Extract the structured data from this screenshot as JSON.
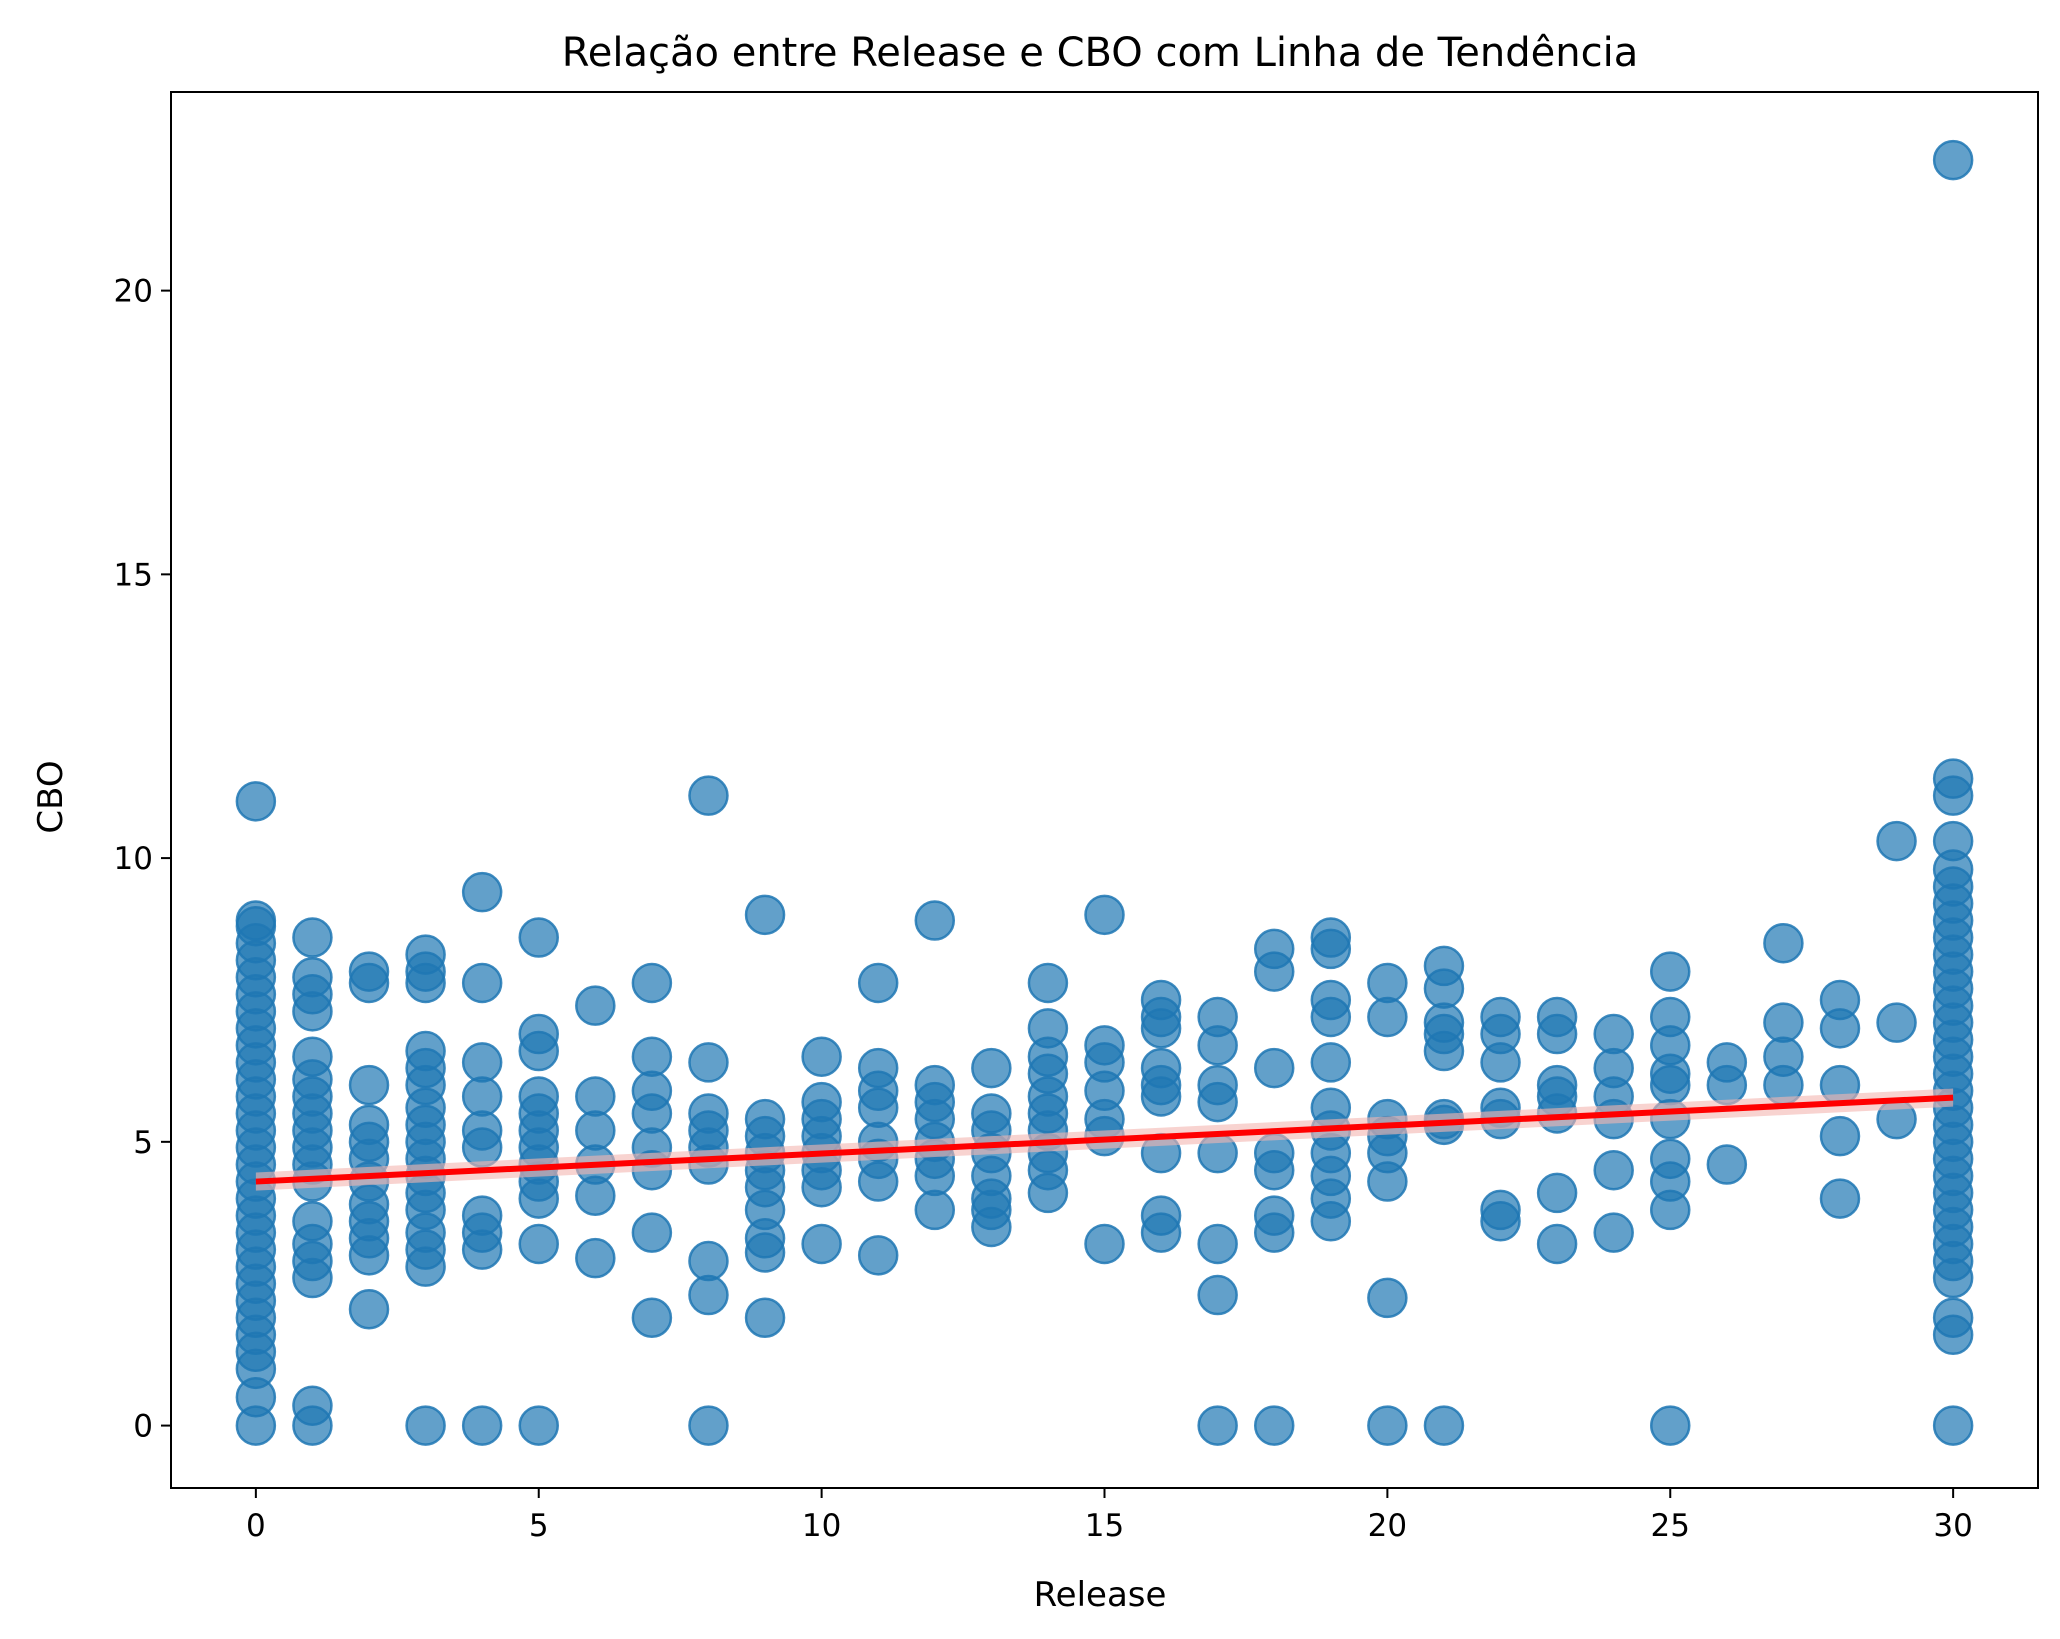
{
  "chart_data": {
    "type": "scatter",
    "title": "Relação entre Release e CBO com Linha de Tendência",
    "xlabel": "Release",
    "ylabel": "CBO",
    "xlim": [
      -1.5,
      31.5
    ],
    "ylim": [
      -1.1,
      23.5
    ],
    "xticks": [
      0,
      5,
      10,
      15,
      20,
      25,
      30
    ],
    "yticks": [
      0,
      5,
      10,
      15,
      20
    ],
    "grid": false,
    "legend": "none",
    "colors": {
      "points": "#1f77b4",
      "trend": "#ff0000",
      "band": "#f4b6b0"
    },
    "trend_line": {
      "x0": 0,
      "y0": 4.3,
      "x1": 30,
      "y1": 5.78,
      "ci_half_width": 0.16
    },
    "series": [
      {
        "values": [
          [
            0,
            0
          ],
          [
            0,
            0.5
          ],
          [
            0,
            1.0
          ],
          [
            0,
            1.3
          ],
          [
            0,
            1.6
          ],
          [
            0,
            1.9
          ],
          [
            0,
            2.2
          ],
          [
            0,
            2.5
          ],
          [
            0,
            2.8
          ],
          [
            0,
            3.1
          ],
          [
            0,
            3.4
          ],
          [
            0,
            3.7
          ],
          [
            0,
            4.0
          ],
          [
            0,
            4.3
          ],
          [
            0,
            4.6
          ],
          [
            0,
            4.9
          ],
          [
            0,
            5.2
          ],
          [
            0,
            5.5
          ],
          [
            0,
            5.8
          ],
          [
            0,
            6.1
          ],
          [
            0,
            6.4
          ],
          [
            0,
            6.7
          ],
          [
            0,
            7.0
          ],
          [
            0,
            7.3
          ],
          [
            0,
            7.6
          ],
          [
            0,
            7.9
          ],
          [
            0,
            8.2
          ],
          [
            0,
            8.5
          ],
          [
            0,
            8.8
          ],
          [
            0,
            8.9
          ],
          [
            0,
            11.0
          ],
          [
            1,
            0
          ],
          [
            1,
            0.35
          ],
          [
            1,
            2.6
          ],
          [
            1,
            2.9
          ],
          [
            1,
            3.2
          ],
          [
            1,
            3.6
          ],
          [
            1,
            4.3
          ],
          [
            1,
            4.6
          ],
          [
            1,
            4.9
          ],
          [
            1,
            5.2
          ],
          [
            1,
            5.5
          ],
          [
            1,
            5.8
          ],
          [
            1,
            6.1
          ],
          [
            1,
            6.5
          ],
          [
            1,
            7.3
          ],
          [
            1,
            7.6
          ],
          [
            1,
            7.9
          ],
          [
            1,
            8.6
          ],
          [
            2,
            2.05
          ],
          [
            2,
            3.0
          ],
          [
            2,
            3.3
          ],
          [
            2,
            3.6
          ],
          [
            2,
            3.9
          ],
          [
            2,
            4.3
          ],
          [
            2,
            4.7
          ],
          [
            2,
            5.0
          ],
          [
            2,
            5.3
          ],
          [
            2,
            6.0
          ],
          [
            2,
            7.8
          ],
          [
            2,
            8.0
          ],
          [
            3,
            0
          ],
          [
            3,
            2.8
          ],
          [
            3,
            3.1
          ],
          [
            3,
            3.4
          ],
          [
            3,
            3.8
          ],
          [
            3,
            4.1
          ],
          [
            3,
            4.4
          ],
          [
            3,
            4.7
          ],
          [
            3,
            5.0
          ],
          [
            3,
            5.3
          ],
          [
            3,
            5.6
          ],
          [
            3,
            6.0
          ],
          [
            3,
            6.3
          ],
          [
            3,
            6.6
          ],
          [
            3,
            7.8
          ],
          [
            3,
            8.0
          ],
          [
            3,
            8.3
          ],
          [
            4,
            0
          ],
          [
            4,
            3.1
          ],
          [
            4,
            3.4
          ],
          [
            4,
            3.7
          ],
          [
            4,
            4.9
          ],
          [
            4,
            5.2
          ],
          [
            4,
            5.8
          ],
          [
            4,
            6.4
          ],
          [
            4,
            7.8
          ],
          [
            4,
            9.4
          ],
          [
            5,
            0
          ],
          [
            5,
            3.2
          ],
          [
            5,
            4.0
          ],
          [
            5,
            4.3
          ],
          [
            5,
            4.6
          ],
          [
            5,
            4.9
          ],
          [
            5,
            5.2
          ],
          [
            5,
            5.5
          ],
          [
            5,
            5.8
          ],
          [
            5,
            6.6
          ],
          [
            5,
            6.9
          ],
          [
            5,
            8.6
          ],
          [
            6,
            2.95
          ],
          [
            6,
            4.05
          ],
          [
            6,
            4.6
          ],
          [
            6,
            5.2
          ],
          [
            6,
            5.8
          ],
          [
            6,
            7.4
          ],
          [
            7,
            1.9
          ],
          [
            7,
            3.4
          ],
          [
            7,
            4.5
          ],
          [
            7,
            4.9
          ],
          [
            7,
            5.5
          ],
          [
            7,
            5.9
          ],
          [
            7,
            6.5
          ],
          [
            7,
            7.8
          ],
          [
            8,
            0
          ],
          [
            8,
            2.3
          ],
          [
            8,
            2.9
          ],
          [
            8,
            4.6
          ],
          [
            8,
            4.9
          ],
          [
            8,
            5.2
          ],
          [
            8,
            5.5
          ],
          [
            8,
            6.4
          ],
          [
            8,
            11.1
          ],
          [
            9,
            1.9
          ],
          [
            9,
            3.05
          ],
          [
            9,
            3.3
          ],
          [
            9,
            3.8
          ],
          [
            9,
            4.2
          ],
          [
            9,
            4.5
          ],
          [
            9,
            4.8
          ],
          [
            9,
            5.1
          ],
          [
            9,
            5.4
          ],
          [
            9,
            9.0
          ],
          [
            10,
            3.2
          ],
          [
            10,
            4.2
          ],
          [
            10,
            4.5
          ],
          [
            10,
            4.8
          ],
          [
            10,
            5.1
          ],
          [
            10,
            5.4
          ],
          [
            10,
            5.7
          ],
          [
            10,
            6.5
          ],
          [
            11,
            3.0
          ],
          [
            11,
            4.3
          ],
          [
            11,
            4.7
          ],
          [
            11,
            5.0
          ],
          [
            11,
            5.6
          ],
          [
            11,
            5.9
          ],
          [
            11,
            6.3
          ],
          [
            11,
            7.8
          ],
          [
            12,
            3.8
          ],
          [
            12,
            4.4
          ],
          [
            12,
            4.7
          ],
          [
            12,
            5.0
          ],
          [
            12,
            5.4
          ],
          [
            12,
            5.7
          ],
          [
            12,
            6.0
          ],
          [
            12,
            8.9
          ],
          [
            13,
            3.5
          ],
          [
            13,
            3.8
          ],
          [
            13,
            4.0
          ],
          [
            13,
            4.4
          ],
          [
            13,
            4.8
          ],
          [
            13,
            5.2
          ],
          [
            13,
            5.5
          ],
          [
            13,
            6.3
          ],
          [
            14,
            4.1
          ],
          [
            14,
            4.5
          ],
          [
            14,
            4.8
          ],
          [
            14,
            5.2
          ],
          [
            14,
            5.5
          ],
          [
            14,
            5.8
          ],
          [
            14,
            6.2
          ],
          [
            14,
            6.5
          ],
          [
            14,
            7.0
          ],
          [
            14,
            7.8
          ],
          [
            15,
            3.2
          ],
          [
            15,
            5.1
          ],
          [
            15,
            5.4
          ],
          [
            15,
            5.9
          ],
          [
            15,
            6.4
          ],
          [
            15,
            6.7
          ],
          [
            15,
            9.0
          ],
          [
            16,
            3.4
          ],
          [
            16,
            3.7
          ],
          [
            16,
            4.8
          ],
          [
            16,
            5.8
          ],
          [
            16,
            6.0
          ],
          [
            16,
            6.3
          ],
          [
            16,
            7.0
          ],
          [
            16,
            7.2
          ],
          [
            16,
            7.5
          ],
          [
            17,
            0
          ],
          [
            17,
            2.3
          ],
          [
            17,
            3.2
          ],
          [
            17,
            4.8
          ],
          [
            17,
            5.7
          ],
          [
            17,
            6.0
          ],
          [
            17,
            6.7
          ],
          [
            17,
            7.2
          ],
          [
            18,
            0
          ],
          [
            18,
            3.4
          ],
          [
            18,
            3.7
          ],
          [
            18,
            4.5
          ],
          [
            18,
            4.8
          ],
          [
            18,
            6.3
          ],
          [
            18,
            8.0
          ],
          [
            18,
            8.4
          ],
          [
            19,
            3.6
          ],
          [
            19,
            4.0
          ],
          [
            19,
            4.4
          ],
          [
            19,
            4.8
          ],
          [
            19,
            5.2
          ],
          [
            19,
            5.6
          ],
          [
            19,
            6.4
          ],
          [
            19,
            7.2
          ],
          [
            19,
            7.5
          ],
          [
            19,
            8.4
          ],
          [
            19,
            8.6
          ],
          [
            20,
            0
          ],
          [
            20,
            2.25
          ],
          [
            20,
            4.3
          ],
          [
            20,
            4.8
          ],
          [
            20,
            5.1
          ],
          [
            20,
            5.4
          ],
          [
            20,
            7.2
          ],
          [
            20,
            7.8
          ],
          [
            21,
            0
          ],
          [
            21,
            5.3
          ],
          [
            21,
            5.4
          ],
          [
            21,
            6.6
          ],
          [
            21,
            6.9
          ],
          [
            21,
            7.1
          ],
          [
            21,
            7.7
          ],
          [
            21,
            8.1
          ],
          [
            22,
            3.6
          ],
          [
            22,
            3.8
          ],
          [
            22,
            5.4
          ],
          [
            22,
            5.6
          ],
          [
            22,
            6.4
          ],
          [
            22,
            6.9
          ],
          [
            22,
            7.2
          ],
          [
            23,
            3.2
          ],
          [
            23,
            4.1
          ],
          [
            23,
            5.5
          ],
          [
            23,
            5.8
          ],
          [
            23,
            6.0
          ],
          [
            23,
            6.9
          ],
          [
            23,
            7.2
          ],
          [
            24,
            3.4
          ],
          [
            24,
            4.5
          ],
          [
            24,
            5.4
          ],
          [
            24,
            5.8
          ],
          [
            24,
            6.3
          ],
          [
            24,
            6.9
          ],
          [
            25,
            0
          ],
          [
            25,
            3.8
          ],
          [
            25,
            4.3
          ],
          [
            25,
            4.7
          ],
          [
            25,
            5.4
          ],
          [
            25,
            6.0
          ],
          [
            25,
            6.2
          ],
          [
            25,
            6.7
          ],
          [
            25,
            7.2
          ],
          [
            25,
            8.0
          ],
          [
            26,
            4.6
          ],
          [
            26,
            6.0
          ],
          [
            26,
            6.4
          ],
          [
            27,
            6.0
          ],
          [
            27,
            6.5
          ],
          [
            27,
            7.1
          ],
          [
            27,
            8.5
          ],
          [
            28,
            4.0
          ],
          [
            28,
            5.1
          ],
          [
            28,
            6.0
          ],
          [
            28,
            7.0
          ],
          [
            28,
            7.5
          ],
          [
            29,
            5.4
          ],
          [
            29,
            7.1
          ],
          [
            29,
            10.3
          ],
          [
            30,
            0
          ],
          [
            30,
            1.6
          ],
          [
            30,
            1.9
          ],
          [
            30,
            2.6
          ],
          [
            30,
            2.9
          ],
          [
            30,
            3.2
          ],
          [
            30,
            3.5
          ],
          [
            30,
            3.8
          ],
          [
            30,
            4.1
          ],
          [
            30,
            4.4
          ],
          [
            30,
            4.7
          ],
          [
            30,
            5.0
          ],
          [
            30,
            5.3
          ],
          [
            30,
            5.6
          ],
          [
            30,
            5.9
          ],
          [
            30,
            6.2
          ],
          [
            30,
            6.5
          ],
          [
            30,
            6.8
          ],
          [
            30,
            7.1
          ],
          [
            30,
            7.4
          ],
          [
            30,
            7.7
          ],
          [
            30,
            8.0
          ],
          [
            30,
            8.3
          ],
          [
            30,
            8.6
          ],
          [
            30,
            8.9
          ],
          [
            30,
            9.2
          ],
          [
            30,
            9.5
          ],
          [
            30,
            9.8
          ],
          [
            30,
            10.3
          ],
          [
            30,
            11.1
          ],
          [
            30,
            11.4
          ],
          [
            30,
            22.3
          ]
        ]
      }
    ]
  }
}
